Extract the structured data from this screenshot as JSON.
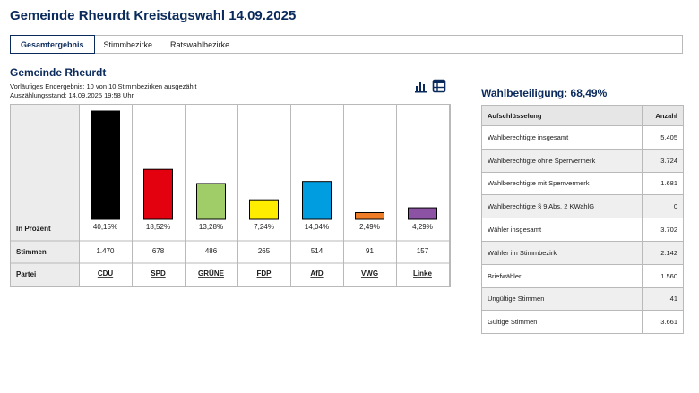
{
  "page_title": "Gemeinde Rheurdt Kreistagswahl 14.09.2025",
  "tabs": [
    {
      "label": "Gesamtergebnis",
      "active": true
    },
    {
      "label": "Stimmbezirke",
      "active": false
    },
    {
      "label": "Ratswahlbezirke",
      "active": false
    }
  ],
  "section": {
    "title": "Gemeinde Rheurdt",
    "status": "Vorläufiges Endergebnis: 10 von 10 Stimmbezirken ausgezählt",
    "timestamp": "Auszählungsstand: 14.09.2025 19:58 Uhr"
  },
  "view_icons": [
    {
      "name": "bar-chart-icon",
      "active": true
    },
    {
      "name": "table-view-icon",
      "active": false
    }
  ],
  "chart_data": {
    "type": "bar",
    "row_labels": {
      "percent": "In Prozent",
      "votes": "Stimmen",
      "party": "Partei"
    },
    "categories": [
      "CDU",
      "SPD",
      "GRÜNE",
      "FDP",
      "AfD",
      "VWG",
      "Linke"
    ],
    "percent_labels": [
      "40,15%",
      "18,52%",
      "13,28%",
      "7,24%",
      "14,04%",
      "2,49%",
      "4,29%"
    ],
    "values": [
      40.15,
      18.52,
      13.28,
      7.24,
      14.04,
      2.49,
      4.29
    ],
    "votes": [
      "1.470",
      "678",
      "486",
      "265",
      "514",
      "91",
      "157"
    ],
    "colors": [
      "#000000",
      "#e3000f",
      "#a0cd67",
      "#ffed00",
      "#009ee0",
      "#ef7d27",
      "#8c52a3"
    ],
    "ylim": [
      0,
      40.15
    ]
  },
  "turnout": {
    "title": "Wahlbeteiligung: 68,49%",
    "header": {
      "label": "Aufschlüsselung",
      "value": "Anzahl"
    },
    "rows": [
      {
        "label": "Wahlberechtigte insgesamt",
        "value": "5.405"
      },
      {
        "label": "Wahlberechtigte ohne Sperrvermerk",
        "value": "3.724"
      },
      {
        "label": "Wahlberechtigte mit Sperrvermerk",
        "value": "1.681"
      },
      {
        "label": "Wahlberechtigte § 9 Abs. 2 KWahlG",
        "value": "0"
      },
      {
        "label": "Wähler insgesamt",
        "value": "3.702"
      },
      {
        "label": "Wähler im Stimmbezirk",
        "value": "2.142"
      },
      {
        "label": "Briefwähler",
        "value": "1.560"
      },
      {
        "label": "Ungültige Stimmen",
        "value": "41"
      },
      {
        "label": "Gültige Stimmen",
        "value": "3.661"
      }
    ]
  }
}
